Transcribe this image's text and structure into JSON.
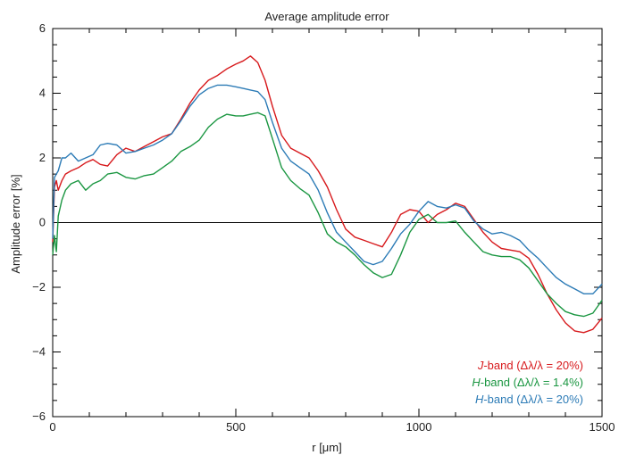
{
  "chart_data": {
    "type": "line",
    "title": "Average amplitude error",
    "xlabel": "r [μm]",
    "ylabel": "Amplitude error [%]",
    "xlim": [
      0,
      1500
    ],
    "ylim": [
      -6,
      6
    ],
    "x_ticks": [
      0,
      500,
      1000,
      1500
    ],
    "x_tick_labels": [
      "0",
      "500",
      "1000",
      "1500"
    ],
    "y_ticks": [
      -6,
      -4,
      -2,
      0,
      2,
      4,
      6
    ],
    "y_tick_labels": [
      "−6",
      "−4",
      "−2",
      "0",
      "2",
      "4",
      "6"
    ],
    "zero_line": true,
    "grid": false,
    "legend_position": "bottom-right",
    "series": [
      {
        "name": "J-band (Δλ/λ = 20%)",
        "band": "J",
        "suffix": "-band (Δλ/λ = 20%)",
        "color": "#d7191c",
        "x": [
          0,
          5,
          10,
          15,
          25,
          35,
          50,
          70,
          90,
          110,
          130,
          150,
          175,
          200,
          225,
          250,
          275,
          300,
          325,
          350,
          375,
          400,
          425,
          450,
          475,
          500,
          520,
          540,
          560,
          580,
          600,
          625,
          650,
          675,
          700,
          725,
          750,
          775,
          800,
          825,
          850,
          875,
          900,
          925,
          950,
          975,
          1000,
          1025,
          1050,
          1075,
          1100,
          1125,
          1150,
          1175,
          1200,
          1225,
          1250,
          1275,
          1300,
          1325,
          1350,
          1375,
          1400,
          1425,
          1450,
          1475,
          1500
        ],
        "y": [
          -0.6,
          1.1,
          1.3,
          1.0,
          1.3,
          1.5,
          1.6,
          1.7,
          1.85,
          1.95,
          1.8,
          1.75,
          2.1,
          2.3,
          2.2,
          2.35,
          2.5,
          2.65,
          2.75,
          3.2,
          3.7,
          4.1,
          4.4,
          4.55,
          4.75,
          4.9,
          5.0,
          5.15,
          4.95,
          4.4,
          3.6,
          2.7,
          2.3,
          2.15,
          2.0,
          1.6,
          1.1,
          0.4,
          -0.2,
          -0.45,
          -0.55,
          -0.65,
          -0.75,
          -0.3,
          0.25,
          0.4,
          0.35,
          0.0,
          0.25,
          0.4,
          0.6,
          0.5,
          0.1,
          -0.3,
          -0.6,
          -0.8,
          -0.85,
          -0.9,
          -1.1,
          -1.6,
          -2.2,
          -2.7,
          -3.1,
          -3.35,
          -3.4,
          -3.3,
          -2.95
        ]
      },
      {
        "name": "H-band (Δλ/λ = 1.4%)",
        "band": "H",
        "suffix": "-band (Δλ/λ = 1.4%)",
        "color": "#1a9641",
        "x": [
          0,
          5,
          10,
          15,
          25,
          35,
          50,
          70,
          90,
          110,
          130,
          150,
          175,
          200,
          225,
          250,
          275,
          300,
          325,
          350,
          375,
          400,
          425,
          450,
          475,
          500,
          520,
          540,
          560,
          580,
          600,
          625,
          650,
          675,
          700,
          725,
          750,
          775,
          800,
          825,
          850,
          875,
          900,
          925,
          950,
          975,
          1000,
          1025,
          1050,
          1075,
          1100,
          1125,
          1150,
          1175,
          1200,
          1225,
          1250,
          1275,
          1300,
          1325,
          1350,
          1375,
          1400,
          1425,
          1450,
          1475,
          1500
        ],
        "y": [
          -1.0,
          -0.4,
          -0.9,
          0.2,
          0.7,
          1.0,
          1.2,
          1.3,
          1.0,
          1.2,
          1.3,
          1.5,
          1.55,
          1.4,
          1.35,
          1.45,
          1.5,
          1.7,
          1.9,
          2.2,
          2.35,
          2.55,
          2.95,
          3.2,
          3.35,
          3.3,
          3.3,
          3.35,
          3.4,
          3.3,
          2.6,
          1.7,
          1.3,
          1.05,
          0.85,
          0.3,
          -0.35,
          -0.6,
          -0.75,
          -1.0,
          -1.3,
          -1.55,
          -1.7,
          -1.6,
          -1.0,
          -0.3,
          0.1,
          0.25,
          0.0,
          0.0,
          0.05,
          -0.3,
          -0.6,
          -0.9,
          -1.0,
          -1.05,
          -1.05,
          -1.15,
          -1.4,
          -1.8,
          -2.2,
          -2.5,
          -2.75,
          -2.85,
          -2.9,
          -2.8,
          -2.4
        ]
      },
      {
        "name": "H-band (Δλ/λ = 20%)",
        "band": "H",
        "suffix": "-band (Δλ/λ = 20%)",
        "color": "#2c7bb6",
        "x": [
          0,
          5,
          10,
          15,
          25,
          35,
          50,
          70,
          90,
          110,
          130,
          150,
          175,
          200,
          225,
          250,
          275,
          300,
          325,
          350,
          375,
          400,
          425,
          450,
          475,
          500,
          520,
          540,
          560,
          580,
          600,
          625,
          650,
          675,
          700,
          725,
          750,
          775,
          800,
          825,
          850,
          875,
          900,
          925,
          950,
          975,
          1000,
          1025,
          1050,
          1075,
          1100,
          1125,
          1150,
          1175,
          1200,
          1225,
          1250,
          1275,
          1300,
          1325,
          1350,
          1375,
          1400,
          1425,
          1450,
          1475,
          1500
        ],
        "y": [
          -0.5,
          1.4,
          1.5,
          1.6,
          2.0,
          2.0,
          2.15,
          1.9,
          2.0,
          2.1,
          2.4,
          2.45,
          2.4,
          2.15,
          2.2,
          2.3,
          2.4,
          2.55,
          2.75,
          3.15,
          3.6,
          3.95,
          4.15,
          4.25,
          4.25,
          4.2,
          4.15,
          4.1,
          4.05,
          3.8,
          3.1,
          2.3,
          1.9,
          1.7,
          1.5,
          1.0,
          0.3,
          -0.3,
          -0.6,
          -0.9,
          -1.2,
          -1.3,
          -1.2,
          -0.8,
          -0.35,
          -0.05,
          0.35,
          0.65,
          0.5,
          0.45,
          0.55,
          0.45,
          0.05,
          -0.2,
          -0.35,
          -0.3,
          -0.4,
          -0.55,
          -0.85,
          -1.1,
          -1.4,
          -1.7,
          -1.9,
          -2.05,
          -2.2,
          -2.2,
          -1.9
        ]
      }
    ]
  }
}
